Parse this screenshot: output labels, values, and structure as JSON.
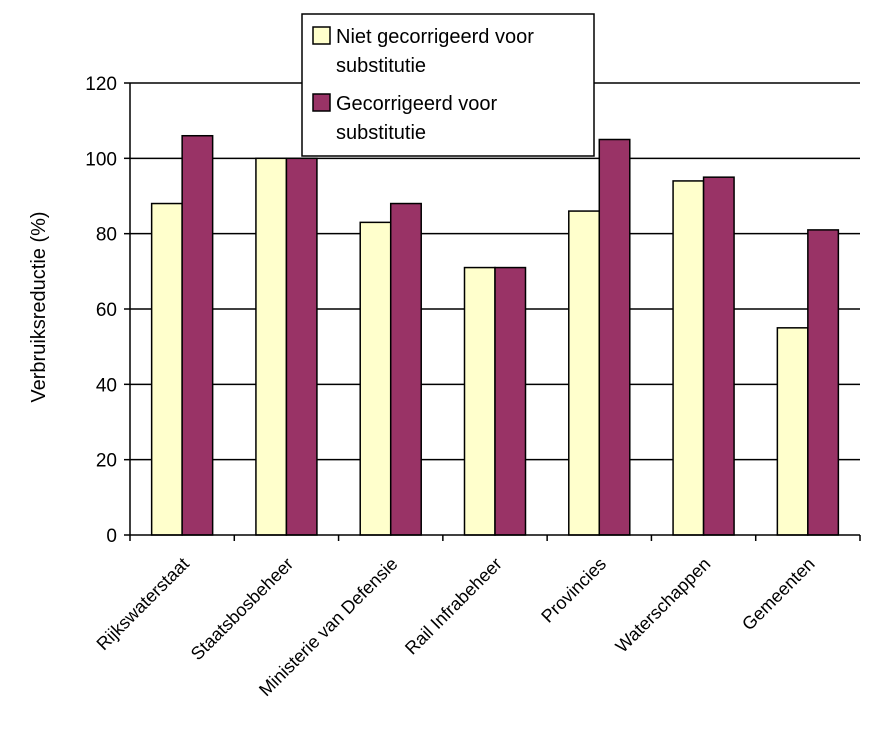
{
  "chart_data": {
    "type": "bar",
    "title": "",
    "xlabel": "",
    "ylabel": "Verbruiksreductie (%)",
    "ylim": [
      0,
      120
    ],
    "yticks": [
      0,
      20,
      40,
      60,
      80,
      100,
      120
    ],
    "grid": true,
    "legend_position": "top-center",
    "categories": [
      "Rijkswaterstaat",
      "Staatsbosbeheer",
      "Ministerie van Defensie",
      "Rail Infrabeheer",
      "Provincies",
      "Waterschappen",
      "Gemeenten"
    ],
    "series": [
      {
        "name": "Niet gecorrigeerd voor substitutie",
        "legend_lines": [
          "Niet gecorrigeerd voor",
          "substitutie"
        ],
        "color": "#FFFFCC",
        "values": [
          88,
          100,
          83,
          71,
          86,
          94,
          55
        ]
      },
      {
        "name": "Gecorrigeerd voor substitutie",
        "legend_lines": [
          "Gecorrigeerd voor",
          "substitutie"
        ],
        "color": "#993366",
        "values": [
          106,
          100,
          88,
          71,
          105,
          95,
          81
        ]
      }
    ]
  }
}
